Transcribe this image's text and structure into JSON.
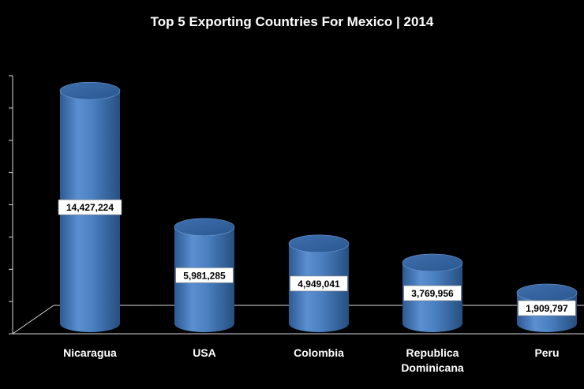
{
  "chart_data": {
    "type": "bar",
    "title": "Top 5 Exporting Countries  For Mexico | 2014",
    "categories": [
      [
        "Nicaragua"
      ],
      [
        "USA"
      ],
      [
        "Colombia"
      ],
      [
        "Republica",
        "Dominicana"
      ],
      [
        "Peru"
      ]
    ],
    "values": [
      14427224,
      5981285,
      4949041,
      3769956,
      1909797
    ],
    "data_labels": [
      "14,427,224",
      "5,981,285",
      "4,949,041",
      "3,769,956",
      "1,909,797"
    ],
    "ylim": [
      0,
      16000000
    ],
    "xlabel": "",
    "ylabel": "",
    "bar_color": "#4f81bd",
    "background": "#000000"
  }
}
